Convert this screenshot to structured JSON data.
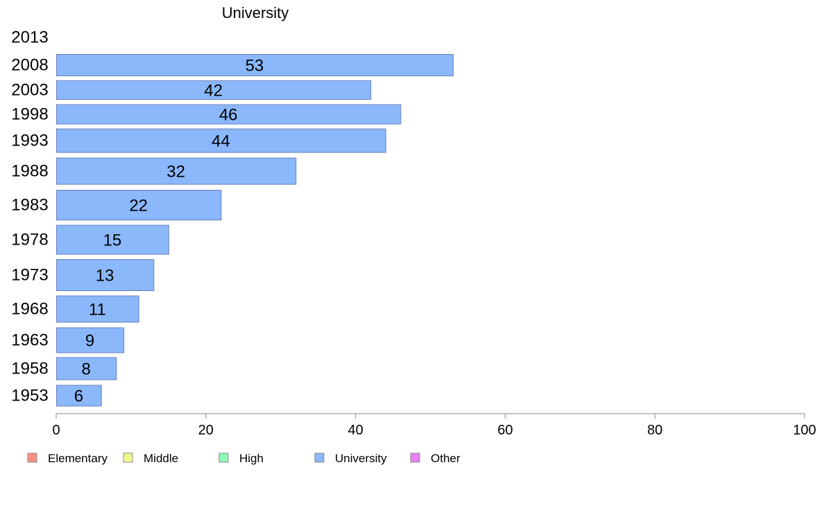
{
  "chart_data": {
    "type": "bar",
    "orientation": "horizontal",
    "title": "University",
    "categories": [
      "2013",
      "2008",
      "2003",
      "1998",
      "1993",
      "1988",
      "1983",
      "1978",
      "1973",
      "1968",
      "1963",
      "1958",
      "1953"
    ],
    "values": [
      null,
      53,
      42,
      46,
      44,
      32,
      22,
      15,
      13,
      11,
      9,
      8,
      6
    ],
    "value_labels": [
      "",
      "53",
      "42",
      "46",
      "44",
      "32",
      "22",
      "15",
      "13",
      "11",
      "9",
      "8",
      "6"
    ],
    "xlim": [
      0,
      100
    ],
    "xticks": [
      "0",
      "20",
      "40",
      "60",
      "80",
      "100"
    ],
    "grid": false,
    "bar_color": "#8ab8fb",
    "bar_stroke": "#6a7fc0",
    "legend_placement": "bottom-left",
    "legend": [
      {
        "name": "Elementary",
        "color": "#fb8f82"
      },
      {
        "name": "Middle",
        "color": "#eefb8c"
      },
      {
        "name": "High",
        "color": "#8efbbb"
      },
      {
        "name": "University",
        "color": "#8ab8fb"
      },
      {
        "name": "Other",
        "color": "#e882f5"
      }
    ]
  }
}
